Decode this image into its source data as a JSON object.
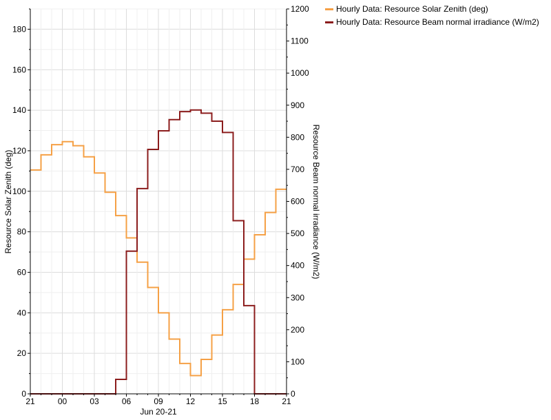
{
  "chart_data": {
    "type": "line",
    "step": true,
    "grid": true,
    "xlabel": "Jun 20-21",
    "x_ticks": [
      "21",
      "00",
      "03",
      "06",
      "09",
      "12",
      "15",
      "18",
      "21"
    ],
    "x_range_hours": [
      0,
      24
    ],
    "left_axis": {
      "label": "Resource Solar Zenith (deg)",
      "ylim": [
        0,
        190
      ],
      "ticks": [
        "0",
        "20",
        "40",
        "60",
        "80",
        "100",
        "120",
        "140",
        "160",
        "180"
      ]
    },
    "right_axis": {
      "label": "Resource Beam normal irradiance (W/m2)",
      "ylim": [
        0,
        1200
      ],
      "ticks": [
        "0",
        "100",
        "200",
        "300",
        "400",
        "500",
        "600",
        "700",
        "800",
        "900",
        "1000",
        "1100",
        "1200"
      ]
    },
    "legend_position": "top-right outside",
    "series": [
      {
        "name": "Hourly Data: Resource Solar Zenith (deg)",
        "axis": "left",
        "color": "#f5a045",
        "hours": [
          "21",
          "22",
          "23",
          "00",
          "01",
          "02",
          "03",
          "04",
          "05",
          "06",
          "07",
          "08",
          "09",
          "10",
          "11",
          "12",
          "13",
          "14",
          "15",
          "16",
          "17",
          "18",
          "19",
          "20"
        ],
        "values": [
          110.5,
          118,
          123,
          124.5,
          122.5,
          117,
          109,
          99.5,
          88,
          77,
          65,
          52.5,
          40,
          27,
          15,
          9,
          17,
          29,
          41.5,
          54,
          66.5,
          78.5,
          89.5,
          101
        ]
      },
      {
        "name": "Hourly Data: Resource Beam normal irradiance (W/m2)",
        "axis": "right",
        "color": "#8b1c1c",
        "hours": [
          "21",
          "22",
          "23",
          "00",
          "01",
          "02",
          "03",
          "04",
          "05",
          "06",
          "07",
          "08",
          "09",
          "10",
          "11",
          "12",
          "13",
          "14",
          "15",
          "16",
          "17",
          "18",
          "19",
          "20"
        ],
        "values": [
          0,
          0,
          0,
          0,
          0,
          0,
          0,
          0,
          45,
          445,
          640,
          762,
          820,
          855,
          880,
          885,
          875,
          850,
          815,
          540,
          275,
          0,
          0,
          0
        ]
      }
    ]
  }
}
